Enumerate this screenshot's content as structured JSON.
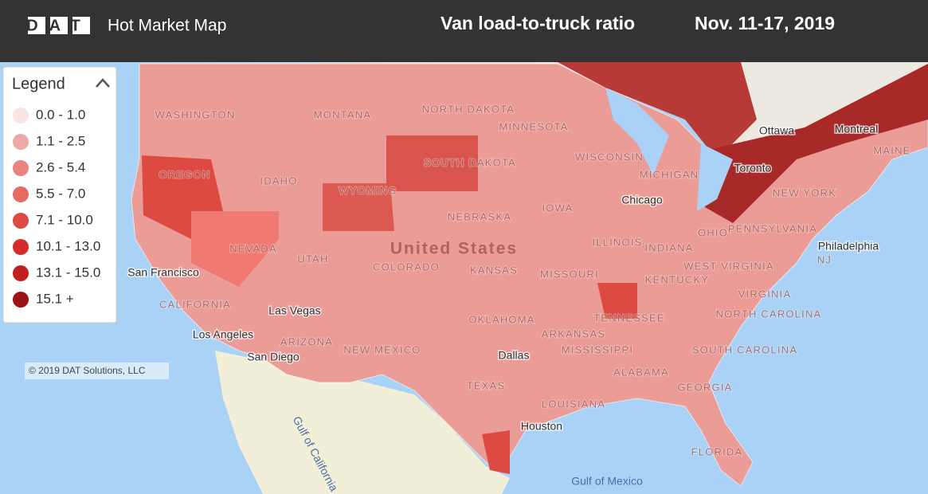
{
  "header": {
    "logo": "DAT",
    "app_title": "Hot Market Map",
    "title": "Van load-to-truck ratio",
    "date": "Nov. 11-17, 2019"
  },
  "legend": {
    "title": "Legend",
    "items": [
      {
        "label": "0.0 - 1.0",
        "color": "#fbe4e4"
      },
      {
        "label": "1.1 - 2.5",
        "color": "#f0aaa6"
      },
      {
        "label": "2.6 - 5.4",
        "color": "#e8857f"
      },
      {
        "label": "5.5 - 7.0",
        "color": "#e46a62"
      },
      {
        "label": "7.1 - 10.0",
        "color": "#dc4a42"
      },
      {
        "label": "10.1 - 13.0",
        "color": "#d52d2d"
      },
      {
        "label": "13.1 - 15.0",
        "color": "#c41f1f"
      },
      {
        "label": "15.1 +",
        "color": "#9b1414"
      }
    ]
  },
  "map": {
    "copyright": "© 2019 DAT Solutions, LLC",
    "labels": [
      {
        "text": "WASHINGTON",
        "kind": "state"
      },
      {
        "text": "MONTANA",
        "kind": "state"
      },
      {
        "text": "NORTH DAKOTA",
        "kind": "state"
      },
      {
        "text": "MINNESOTA",
        "kind": "state"
      },
      {
        "text": "SOUTH DAKOTA",
        "kind": "state"
      },
      {
        "text": "WISCONSIN",
        "kind": "state"
      },
      {
        "text": "MICHIGAN",
        "kind": "state"
      },
      {
        "text": "OREGON",
        "kind": "state"
      },
      {
        "text": "IDAHO",
        "kind": "state"
      },
      {
        "text": "WYOMING",
        "kind": "state"
      },
      {
        "text": "NEBRASKA",
        "kind": "state"
      },
      {
        "text": "IOWA",
        "kind": "state"
      },
      {
        "text": "NEVADA",
        "kind": "state"
      },
      {
        "text": "UTAH",
        "kind": "state"
      },
      {
        "text": "COLORADO",
        "kind": "state"
      },
      {
        "text": "KANSAS",
        "kind": "state"
      },
      {
        "text": "MISSOURI",
        "kind": "state"
      },
      {
        "text": "ILLINOIS",
        "kind": "state"
      },
      {
        "text": "INDIANA",
        "kind": "state"
      },
      {
        "text": "OHIO",
        "kind": "state"
      },
      {
        "text": "PENNSYLVANIA",
        "kind": "state"
      },
      {
        "text": "NEW YORK",
        "kind": "state"
      },
      {
        "text": "MAINE",
        "kind": "state"
      },
      {
        "text": "NJ",
        "kind": "state"
      },
      {
        "text": "WEST VIRGINIA",
        "kind": "state"
      },
      {
        "text": "VIRGINIA",
        "kind": "state"
      },
      {
        "text": "KENTUCKY",
        "kind": "state"
      },
      {
        "text": "TENNESSEE",
        "kind": "state"
      },
      {
        "text": "NORTH CAROLINA",
        "kind": "state"
      },
      {
        "text": "SOUTH CAROLINA",
        "kind": "state"
      },
      {
        "text": "GEORGIA",
        "kind": "state"
      },
      {
        "text": "ALABAMA",
        "kind": "state"
      },
      {
        "text": "MISSISSIPPI",
        "kind": "state"
      },
      {
        "text": "LOUISIANA",
        "kind": "state"
      },
      {
        "text": "ARKANSAS",
        "kind": "state"
      },
      {
        "text": "OKLAHOMA",
        "kind": "state"
      },
      {
        "text": "TEXAS",
        "kind": "state"
      },
      {
        "text": "NEW MEXICO",
        "kind": "state"
      },
      {
        "text": "ARIZONA",
        "kind": "state"
      },
      {
        "text": "CALIFORNIA",
        "kind": "state"
      },
      {
        "text": "FLORIDA",
        "kind": "state"
      },
      {
        "text": "San Francisco",
        "kind": "city"
      },
      {
        "text": "Las Vegas",
        "kind": "city"
      },
      {
        "text": "Los Angeles",
        "kind": "city"
      },
      {
        "text": "San Diego",
        "kind": "city"
      },
      {
        "text": "Chicago",
        "kind": "city"
      },
      {
        "text": "Toronto",
        "kind": "city"
      },
      {
        "text": "Ottawa",
        "kind": "city"
      },
      {
        "text": "Montreal",
        "kind": "city"
      },
      {
        "text": "Philadelphia",
        "kind": "city"
      },
      {
        "text": "Dallas",
        "kind": "city"
      },
      {
        "text": "Houston",
        "kind": "city"
      },
      {
        "text": "United States",
        "kind": "country"
      },
      {
        "text": "Gulf of Mexico",
        "kind": "water"
      },
      {
        "text": "Gulf of California",
        "kind": "water"
      }
    ]
  }
}
